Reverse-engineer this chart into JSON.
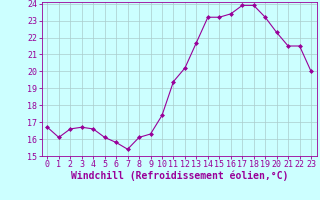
{
  "x": [
    0,
    1,
    2,
    3,
    4,
    5,
    6,
    7,
    8,
    9,
    10,
    11,
    12,
    13,
    14,
    15,
    16,
    17,
    18,
    19,
    20,
    21,
    22,
    23
  ],
  "y": [
    16.7,
    16.1,
    16.6,
    16.7,
    16.6,
    16.1,
    15.8,
    15.4,
    16.1,
    16.3,
    17.4,
    19.4,
    20.2,
    21.7,
    23.2,
    23.2,
    23.4,
    23.9,
    23.9,
    23.2,
    22.3,
    21.5,
    21.5,
    20.0
  ],
  "line_color": "#990099",
  "marker": "D",
  "marker_size": 2.0,
  "bg_color": "#ccffff",
  "grid_color": "#aacccc",
  "xlabel": "Windchill (Refroidissement éolien,°C)",
  "xlabel_color": "#990099",
  "tick_color": "#990099",
  "ylim": [
    15,
    24
  ],
  "xlim": [
    -0.5,
    23.5
  ],
  "yticks": [
    15,
    16,
    17,
    18,
    19,
    20,
    21,
    22,
    23,
    24
  ],
  "xticks": [
    0,
    1,
    2,
    3,
    4,
    5,
    6,
    7,
    8,
    9,
    10,
    11,
    12,
    13,
    14,
    15,
    16,
    17,
    18,
    19,
    20,
    21,
    22,
    23
  ],
  "tick_fontsize": 6.0,
  "xlabel_fontsize": 7.0
}
